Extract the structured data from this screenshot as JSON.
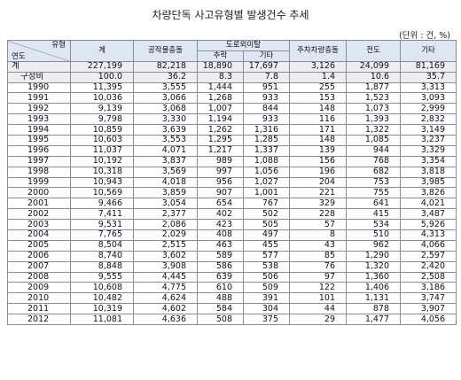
{
  "title": "차량단독 사고유형별 발생건수 추세",
  "unit": "(단위 : 건, %)",
  "header": {
    "corner_top": "유형",
    "corner_bottom": "연도",
    "total": "계",
    "structure": "공작물충돌",
    "off_road_group": "도로외이탈",
    "fall": "추락",
    "other_off": "기타",
    "parked": "주차차량충돌",
    "rollover": "전도",
    "other": "기타"
  },
  "total_row": {
    "label": "계",
    "values": [
      "227,199",
      "82,218",
      "18,890",
      "17,697",
      "3,126",
      "24,099",
      "81,169"
    ]
  },
  "share_row": {
    "label": "구성비",
    "values": [
      "100.0",
      "36.2",
      "8.3",
      "7.8",
      "1.4",
      "10.6",
      "35.7"
    ]
  },
  "rows": [
    {
      "year": "1990",
      "values": [
        "11,395",
        "3,555",
        "1,444",
        "951",
        "255",
        "1,877",
        "3,313"
      ]
    },
    {
      "year": "1991",
      "values": [
        "10,036",
        "3,066",
        "1,268",
        "933",
        "153",
        "1,523",
        "3,093"
      ]
    },
    {
      "year": "1992",
      "values": [
        "9,139",
        "3,068",
        "1,007",
        "844",
        "148",
        "1,073",
        "2,999"
      ]
    },
    {
      "year": "1993",
      "values": [
        "9,798",
        "3,330",
        "1,194",
        "933",
        "116",
        "1,393",
        "2,832"
      ]
    },
    {
      "year": "1994",
      "values": [
        "10,859",
        "3,639",
        "1,262",
        "1,316",
        "171",
        "1,322",
        "3,149"
      ]
    },
    {
      "year": "1995",
      "values": [
        "10,603",
        "3,553",
        "1,295",
        "1,285",
        "148",
        "1,085",
        "3,237"
      ]
    },
    {
      "year": "1996",
      "values": [
        "11,037",
        "4,071",
        "1,217",
        "1,337",
        "139",
        "944",
        "3,329"
      ]
    },
    {
      "year": "1997",
      "values": [
        "10,192",
        "3,837",
        "989",
        "1,088",
        "156",
        "768",
        "3,354"
      ]
    },
    {
      "year": "1998",
      "values": [
        "10,318",
        "3,569",
        "997",
        "1,056",
        "196",
        "682",
        "3,818"
      ]
    },
    {
      "year": "1999",
      "values": [
        "10,943",
        "4,018",
        "956",
        "1,027",
        "204",
        "753",
        "3,985"
      ]
    },
    {
      "year": "2000",
      "values": [
        "10,569",
        "3,859",
        "907",
        "1,001",
        "221",
        "755",
        "3,826"
      ]
    },
    {
      "year": "2001",
      "values": [
        "9,466",
        "3,054",
        "654",
        "767",
        "329",
        "641",
        "4,021"
      ]
    },
    {
      "year": "2002",
      "values": [
        "7,411",
        "2,377",
        "402",
        "502",
        "228",
        "415",
        "3,487"
      ]
    },
    {
      "year": "2003",
      "values": [
        "9,531",
        "2,086",
        "423",
        "505",
        "57",
        "534",
        "5,926"
      ]
    },
    {
      "year": "2004",
      "values": [
        "7,765",
        "2,029",
        "408",
        "497",
        "8",
        "510",
        "4,313"
      ]
    },
    {
      "year": "2005",
      "values": [
        "8,504",
        "2,515",
        "463",
        "455",
        "43",
        "962",
        "4,066"
      ]
    },
    {
      "year": "2006",
      "values": [
        "8,740",
        "3,602",
        "589",
        "577",
        "85",
        "1,290",
        "2,597"
      ]
    },
    {
      "year": "2007",
      "values": [
        "8,848",
        "3,908",
        "586",
        "538",
        "76",
        "1,320",
        "2,420"
      ]
    },
    {
      "year": "2008",
      "values": [
        "9,555",
        "4,445",
        "639",
        "506",
        "97",
        "1,360",
        "2,508"
      ]
    },
    {
      "year": "2009",
      "values": [
        "10,608",
        "4,775",
        "610",
        "509",
        "122",
        "1,406",
        "3,186"
      ]
    },
    {
      "year": "2010",
      "values": [
        "10,482",
        "4,624",
        "488",
        "391",
        "101",
        "1,131",
        "3,747"
      ]
    },
    {
      "year": "2011",
      "values": [
        "10,319",
        "4,602",
        "584",
        "304",
        "44",
        "878",
        "3,907"
      ]
    },
    {
      "year": "2012",
      "values": [
        "11,081",
        "4,636",
        "508",
        "375",
        "29",
        "1,477",
        "4,056"
      ]
    }
  ]
}
